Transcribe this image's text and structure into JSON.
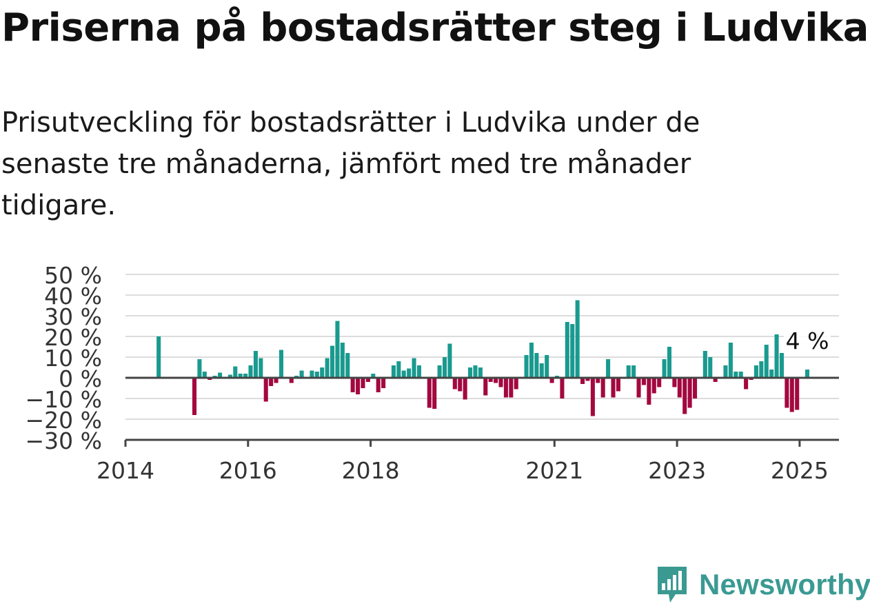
{
  "title": "Priserna på bostadsrätter steg i Ludvika",
  "subtitle": "Prisutveckling för bostadsrätter i Ludvika under de senaste tre månaderna, jämfört med tre månader tidigare.",
  "brand": {
    "name": "Newsworthy",
    "color": "#3a9a92",
    "icon": "newsworthy-logo-icon"
  },
  "colors": {
    "positive": "#1a9a8f",
    "negative": "#a3083f",
    "grid": "#dcdcdc",
    "axis": "#444444"
  },
  "chart_data": {
    "type": "bar",
    "title": "",
    "xlabel": "",
    "ylabel": "",
    "ylim": [
      -30,
      50
    ],
    "y_ticks": [
      50,
      40,
      30,
      20,
      10,
      0,
      -10,
      -20,
      -30
    ],
    "y_tick_labels": [
      "50 %",
      "40 %",
      "30 %",
      "20 %",
      "10 %",
      "0 %",
      "−10 %",
      "−20 %",
      "−30 %"
    ],
    "x_tick_labels": [
      "2014",
      "2016",
      "2018",
      "2021",
      "2023",
      "2025"
    ],
    "x_tick_positions": [
      2014.0,
      2016.0,
      2018.0,
      2021.0,
      2023.0,
      2025.0
    ],
    "grid": true,
    "start": "2014-01",
    "frequency": "monthly",
    "values": [
      null,
      null,
      null,
      null,
      null,
      null,
      20,
      null,
      null,
      null,
      null,
      null,
      null,
      -18,
      9,
      3,
      -1,
      1,
      2.5,
      0.5,
      1.5,
      5.5,
      2,
      2,
      6,
      13,
      9.5,
      -11.5,
      -4,
      -2.5,
      13.5,
      0,
      -2.5,
      1,
      3.5,
      0,
      3.5,
      3,
      5,
      9.5,
      15.5,
      27.5,
      17,
      12,
      -7,
      -8,
      -5,
      -2,
      2,
      -7,
      -5,
      0,
      6,
      8,
      3.5,
      4.5,
      9.5,
      6,
      0,
      -14.5,
      -15,
      6,
      10,
      16.5,
      -5.5,
      -6.5,
      -10.5,
      5,
      6,
      5,
      -8.5,
      -2,
      -2.5,
      -4.5,
      -9.5,
      -9.5,
      -5.5,
      0,
      11,
      17,
      12,
      7,
      11,
      -2.5,
      1,
      -10,
      27,
      26,
      37.5,
      -3,
      -1.5,
      -18.5,
      -2.5,
      -9.5,
      9,
      -9.5,
      -6.5,
      0,
      6,
      6,
      -9.5,
      -3.5,
      -13,
      -7.5,
      -4.5,
      9,
      15,
      -4.5,
      -9.5,
      -17.5,
      -14.5,
      -10,
      0,
      13,
      10,
      -2,
      0,
      6,
      17,
      3,
      3,
      -5.5,
      -1,
      6,
      8,
      16,
      4,
      21,
      12,
      -14.5,
      -16.5,
      -15.5,
      0,
      4
    ],
    "last_value_label": "4 %"
  }
}
